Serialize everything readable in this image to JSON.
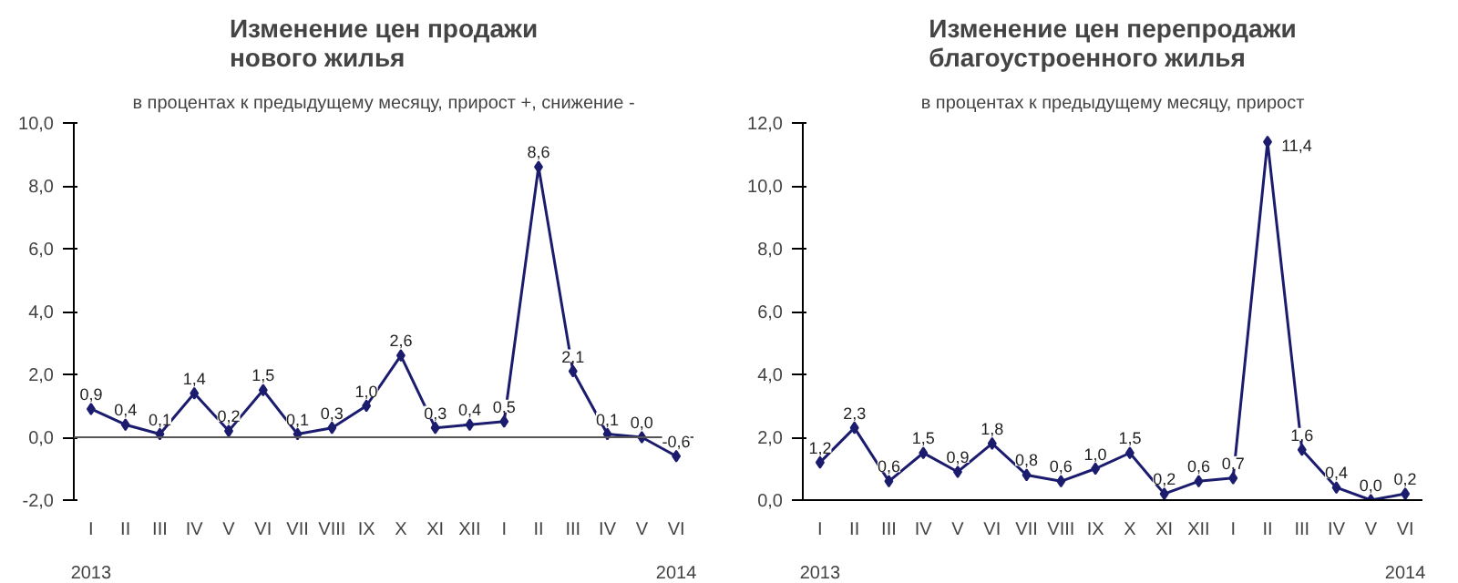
{
  "chart_data": [
    {
      "type": "line",
      "title": "Изменение цен продажи\nнового жилья",
      "subtitle": "в процентах к предыдущему месяцу, прирост +, снижение -",
      "categories": [
        "I",
        "II",
        "III",
        "IV",
        "V",
        "VI",
        "VII",
        "VIII",
        "IX",
        "X",
        "XI",
        "XII",
        "I",
        "II",
        "III",
        "IV",
        "V",
        "VI"
      ],
      "series": [
        {
          "color": "#1c1c6e",
          "values": [
            0.9,
            0.4,
            0.1,
            1.4,
            0.2,
            1.5,
            0.1,
            0.3,
            1.0,
            2.6,
            0.3,
            0.4,
            0.5,
            8.6,
            2.1,
            0.1,
            0.0,
            -0.6
          ],
          "value_labels": [
            "0,9",
            "0,4",
            "0,1",
            "1,4",
            "0,2",
            "1,5",
            "0,1",
            "0,3",
            "1,0",
            "2,6",
            "0,3",
            "0,4",
            "0,5",
            "8,6",
            "2,1",
            "0,1",
            "0,0",
            "-0,6"
          ]
        }
      ],
      "ylim": [
        -2,
        10
      ],
      "yticks": [
        {
          "value": -2,
          "label": "-2,0"
        },
        {
          "value": 0,
          "label": "0,0"
        },
        {
          "value": 2,
          "label": "2,0"
        },
        {
          "value": 4,
          "label": "4,0"
        },
        {
          "value": 6,
          "label": "6,0"
        },
        {
          "value": 8,
          "label": "8,0"
        },
        {
          "value": 10,
          "label": "10,0"
        }
      ],
      "ref_lines": [
        {
          "axis": "y",
          "value": 0
        }
      ],
      "annotations": [
        "2013",
        "2014"
      ],
      "marker": "diamond",
      "line_style": "solid",
      "grid": false
    },
    {
      "type": "line",
      "title": "Изменение цен перепродажи\nблагоустроенного жилья",
      "subtitle": "в процентах к предыдущему месяцу, прирост",
      "categories": [
        "I",
        "II",
        "III",
        "IV",
        "V",
        "VI",
        "VII",
        "VIII",
        "IX",
        "X",
        "XI",
        "XII",
        "I",
        "II",
        "III",
        "IV",
        "V",
        "VI"
      ],
      "series": [
        {
          "color": "#1c1c6e",
          "values": [
            1.2,
            2.3,
            0.6,
            1.5,
            0.9,
            1.8,
            0.8,
            0.6,
            1.0,
            1.5,
            0.2,
            0.6,
            0.7,
            11.4,
            1.6,
            0.4,
            0.0,
            0.2
          ],
          "value_labels": [
            "1,2",
            "2,3",
            "0,6",
            "1,5",
            "0,9",
            "1,8",
            "0,8",
            "0,6",
            "1,0",
            "1,5",
            "0,2",
            "0,6",
            "0,7",
            "11,4",
            "1,6",
            "0,4",
            "0,0",
            "0,2"
          ]
        }
      ],
      "ylim": [
        0,
        12
      ],
      "yticks": [
        {
          "value": 0,
          "label": "0,0"
        },
        {
          "value": 2,
          "label": "2,0"
        },
        {
          "value": 4,
          "label": "4,0"
        },
        {
          "value": 6,
          "label": "6,0"
        },
        {
          "value": 8,
          "label": "8,0"
        },
        {
          "value": 10,
          "label": "10,0"
        },
        {
          "value": 12,
          "label": "12,0"
        }
      ],
      "annotations": [
        "2013",
        "2014"
      ],
      "marker": "diamond",
      "line_style": "solid",
      "grid": false
    }
  ]
}
